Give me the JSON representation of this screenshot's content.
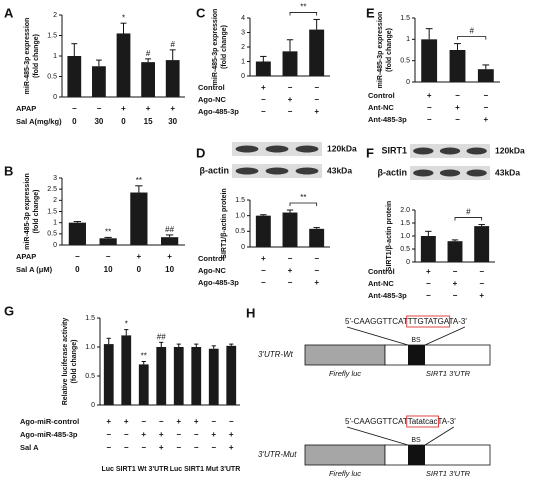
{
  "chart_data": [
    {
      "panel": "A",
      "type": "bar",
      "color": "#1a1a1a",
      "ylabel": [
        "miR-485-3p expression",
        "(fold change)"
      ],
      "values": [
        1.0,
        0.75,
        1.55,
        0.85,
        0.9
      ],
      "errors": [
        0.3,
        0.15,
        0.25,
        0.08,
        0.25
      ],
      "annotations": [
        null,
        null,
        "*",
        "#",
        "#"
      ],
      "ylim": [
        0,
        2
      ],
      "yticks": [
        0,
        0.5,
        1,
        1.5,
        2
      ],
      "conditions": [
        {
          "name": "APAP",
          "values": [
            "−",
            "−",
            "+",
            "+",
            "+"
          ]
        },
        {
          "name": "Sal A(mg/kg)",
          "values": [
            "0",
            "30",
            "0",
            "15",
            "30"
          ]
        }
      ]
    },
    {
      "panel": "B",
      "type": "bar",
      "color": "#1a1a1a",
      "ylabel": [
        "miR-485-3p expression",
        "(fold change)"
      ],
      "values": [
        1.0,
        0.3,
        2.35,
        0.35
      ],
      "errors": [
        0.05,
        0.04,
        0.3,
        0.1
      ],
      "annotations": [
        null,
        "**",
        "**",
        "##"
      ],
      "ylim": [
        0,
        3
      ],
      "yticks": [
        0,
        0.5,
        1,
        1.5,
        2,
        2.5,
        3
      ],
      "conditions": [
        {
          "name": "APAP",
          "values": [
            "−",
            "−",
            "+",
            "+"
          ]
        },
        {
          "name": "Sal A (μM)",
          "values": [
            "0",
            "10",
            "0",
            "10"
          ]
        }
      ]
    },
    {
      "panel": "C",
      "type": "bar",
      "color": "#1a1a1a",
      "ylabel": [
        "miR-485-3p expression",
        "(fold change)"
      ],
      "values": [
        1.0,
        1.7,
        3.2
      ],
      "errors": [
        0.35,
        0.8,
        0.7
      ],
      "bracket_label": "**",
      "ylim": [
        0,
        4
      ],
      "yticks": [
        0,
        1,
        2,
        3,
        4
      ],
      "conditions": [
        {
          "name": "Control",
          "values": [
            "+",
            "−",
            "−"
          ]
        },
        {
          "name": "Ago-NC",
          "values": [
            "−",
            "+",
            "−"
          ]
        },
        {
          "name": "Ago-485-3p",
          "values": [
            "−",
            "−",
            "+"
          ]
        }
      ]
    },
    {
      "panel": "D",
      "type": "bar",
      "color": "#1a1a1a",
      "ylabel": [
        "SIRT1/β-actin protein"
      ],
      "blot": {
        "labels": [
          null,
          "β-actin"
        ],
        "sizes": [
          "120kDa",
          "43kDa"
        ]
      },
      "values": [
        1.0,
        1.1,
        0.58
      ],
      "errors": [
        0.03,
        0.08,
        0.04
      ],
      "bracket_label": "**",
      "ylim": [
        0,
        1.5
      ],
      "yticks": [
        0,
        0.5,
        {
          "value": 1,
          "label": "1.0"
        },
        1.5
      ],
      "conditions": [
        {
          "name": "Control",
          "values": [
            "+",
            "−",
            "−"
          ]
        },
        {
          "name": "Ago-NC",
          "values": [
            "−",
            "+",
            "−"
          ]
        },
        {
          "name": "Ago-485-3p",
          "values": [
            "−",
            "−",
            "+"
          ]
        }
      ]
    },
    {
      "panel": "E",
      "type": "bar",
      "color": "#1a1a1a",
      "ylabel": [
        "miR-485-3p expression",
        "(fold change)"
      ],
      "values": [
        1.0,
        0.75,
        0.3
      ],
      "errors": [
        0.25,
        0.15,
        0.1
      ],
      "bracket_label": "#",
      "ylim": [
        0,
        1.5
      ],
      "yticks": [
        0,
        0.5,
        1,
        1.5
      ],
      "conditions": [
        {
          "name": "Control",
          "values": [
            "+",
            "−",
            "−"
          ]
        },
        {
          "name": "Ant-NC",
          "values": [
            "−",
            "+",
            "−"
          ]
        },
        {
          "name": "Ant-485-3p",
          "values": [
            "−",
            "−",
            "+"
          ]
        }
      ]
    },
    {
      "panel": "F",
      "type": "bar",
      "color": "#1a1a1a",
      "ylabel": [
        "SIRT1/β-actin protein"
      ],
      "blot": {
        "labels": [
          "SIRT1",
          "β-actin"
        ],
        "sizes": [
          "120kDa",
          "43kDa"
        ]
      },
      "values": [
        1.0,
        0.8,
        1.38
      ],
      "errors": [
        0.18,
        0.05,
        0.06
      ],
      "bracket_label": "#",
      "ylim": [
        0,
        2
      ],
      "yticks": [
        0,
        0.5,
        {
          "value": 1,
          "label": "1.0"
        },
        1.5,
        {
          "value": 2,
          "label": "2.0"
        }
      ],
      "conditions": [
        {
          "name": "Control",
          "values": [
            "+",
            "−",
            "−"
          ]
        },
        {
          "name": "Ant-NC",
          "values": [
            "−",
            "+",
            "−"
          ]
        },
        {
          "name": "Ant-485-3p",
          "values": [
            "−",
            "−",
            "+"
          ]
        }
      ]
    },
    {
      "panel": "G",
      "type": "bar",
      "color": "#1a1a1a",
      "ylabel": [
        "Relative luciferase activity",
        "(fold change)"
      ],
      "values": [
        1.05,
        1.2,
        0.7,
        1.0,
        1.0,
        1.0,
        0.97,
        1.02
      ],
      "errors": [
        0.1,
        0.1,
        0.05,
        0.08,
        0.05,
        0.05,
        0.05,
        0.03
      ],
      "annotations": [
        null,
        "*",
        "**",
        "##",
        null,
        null,
        null,
        null
      ],
      "ylim": [
        0,
        1.5
      ],
      "yticks": [
        0,
        0.5,
        {
          "value": 1,
          "label": "1.0"
        },
        1.5
      ],
      "conditions": [
        {
          "name": "Ago-miR-control",
          "values": [
            "+",
            "+",
            "−",
            "−",
            "+",
            "+",
            "−",
            "−"
          ]
        },
        {
          "name": "Ago-miR-485-3p",
          "values": [
            "−",
            "−",
            "+",
            "+",
            "−",
            "−",
            "+",
            "+"
          ]
        },
        {
          "name": "Sal A",
          "values": [
            "−",
            "−",
            "−",
            "+",
            "−",
            "−",
            "−",
            "+"
          ]
        }
      ],
      "groups": [
        "Luc SIRT1 Wt 3'UTR",
        "Luc SIRT1 Mut 3'UTR"
      ]
    }
  ],
  "diagram": {
    "panel": "H",
    "constructs": [
      {
        "name": "3'UTR-Wt",
        "sequence": [
          "5'-CAAGGTTCAT",
          "TTGTATGA",
          "TA-3'"
        ],
        "site": "BS",
        "luc": "Firefly luc",
        "utr": "SIRT1 3'UTR"
      },
      {
        "name": "3'UTR-Mut",
        "sequence": [
          "5'-CAAGGTTCAT",
          "Tatatcac",
          "TA-3'"
        ],
        "site": "BS",
        "luc": "Firefly luc",
        "utr": "SIRT1 3'UTR"
      }
    ]
  }
}
